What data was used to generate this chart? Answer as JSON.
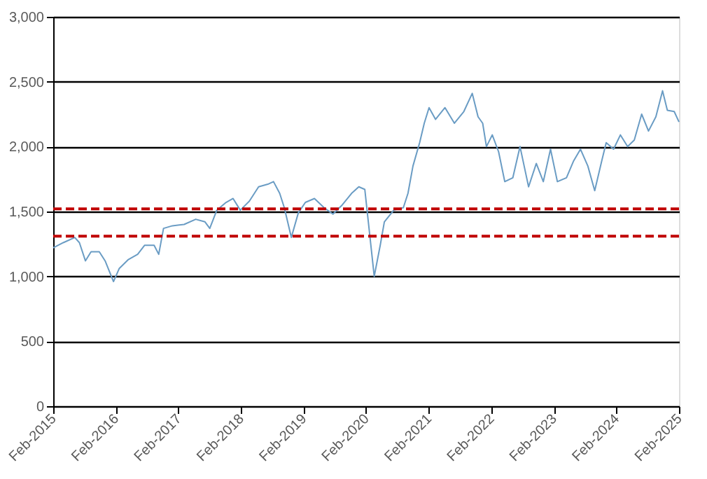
{
  "chart_data": {
    "type": "line",
    "x": [
      "2015-02-01",
      "2015-04-01",
      "2015-06-07",
      "2015-07-04",
      "2015-08-08",
      "2015-09-10",
      "2015-10-28",
      "2015-12-01",
      "2016-01-19",
      "2016-02-21",
      "2016-04-15",
      "2016-06-08",
      "2016-07-19",
      "2016-09-12",
      "2016-10-09",
      "2016-11-06",
      "2016-12-28",
      "2017-03-06",
      "2017-05-13",
      "2017-07-06",
      "2017-08-03",
      "2017-09-13",
      "2017-11-06",
      "2017-12-17",
      "2018-01-28",
      "2018-03-22",
      "2018-05-15",
      "2018-07-08",
      "2018-08-10",
      "2018-09-15",
      "2018-10-12",
      "2018-11-22",
      "2019-01-02",
      "2019-02-12",
      "2019-04-06",
      "2019-06-01",
      "2019-07-23",
      "2019-09-15",
      "2019-11-09",
      "2019-12-21",
      "2020-01-25",
      "2020-03-20",
      "2020-04-24",
      "2020-05-18",
      "2020-07-12",
      "2020-09-06",
      "2020-10-03",
      "2020-11-01",
      "2020-12-10",
      "2021-01-06",
      "2021-02-03",
      "2021-03-13",
      "2021-05-07",
      "2021-07-01",
      "2021-08-25",
      "2021-10-13",
      "2021-11-16",
      "2021-12-13",
      "2022-01-04",
      "2022-02-07",
      "2022-03-16",
      "2022-04-21",
      "2022-06-07",
      "2022-07-19",
      "2022-09-07",
      "2022-10-22",
      "2022-12-02",
      "2023-01-13",
      "2023-02-22",
      "2023-04-16",
      "2023-05-28",
      "2023-07-07",
      "2023-08-19",
      "2023-09-28",
      "2023-11-08",
      "2023-12-04",
      "2024-01-16",
      "2024-02-25",
      "2024-04-07",
      "2024-05-16",
      "2024-06-28",
      "2024-08-07",
      "2024-09-19",
      "2024-10-28",
      "2024-11-25",
      "2025-01-04",
      "2025-02-01"
    ],
    "series": [
      {
        "color": "#6a9cc4",
        "values": [
          1220,
          1260,
          1300,
          1260,
          1120,
          1190,
          1190,
          1120,
          960,
          1060,
          1130,
          1170,
          1240,
          1240,
          1170,
          1370,
          1390,
          1400,
          1440,
          1420,
          1370,
          1510,
          1570,
          1600,
          1510,
          1580,
          1690,
          1710,
          1730,
          1640,
          1530,
          1300,
          1490,
          1570,
          1600,
          1530,
          1480,
          1550,
          1640,
          1690,
          1670,
          1000,
          1240,
          1420,
          1510,
          1530,
          1640,
          1850,
          2030,
          2180,
          2300,
          2210,
          2300,
          2180,
          2270,
          2410,
          2230,
          2180,
          2000,
          2090,
          1960,
          1730,
          1760,
          2000,
          1690,
          1870,
          1730,
          1980,
          1730,
          1760,
          1890,
          1980,
          1850,
          1660,
          1890,
          2030,
          1980,
          2090,
          2000,
          2050,
          2250,
          2120,
          2230,
          2430,
          2280,
          2270,
          2190
        ]
      }
    ],
    "xlim": [
      "2015-02-01",
      "2025-02-01"
    ],
    "xticks": [
      {
        "value": "2015-02-01",
        "label": "Feb-2015"
      },
      {
        "value": "2016-02-01",
        "label": "Feb-2016"
      },
      {
        "value": "2017-02-01",
        "label": "Feb-2017"
      },
      {
        "value": "2018-02-01",
        "label": "Feb-2018"
      },
      {
        "value": "2019-02-01",
        "label": "Feb-2019"
      },
      {
        "value": "2020-02-01",
        "label": "Feb-2020"
      },
      {
        "value": "2021-02-01",
        "label": "Feb-2021"
      },
      {
        "value": "2022-02-01",
        "label": "Feb-2022"
      },
      {
        "value": "2023-02-01",
        "label": "Feb-2023"
      },
      {
        "value": "2024-02-01",
        "label": "Feb-2024"
      },
      {
        "value": "2025-02-01",
        "label": "Feb-2025"
      }
    ],
    "ylim": [
      0,
      3000
    ],
    "yticks": [
      0,
      500,
      {
        "value": 1000,
        "label": "1,000"
      },
      {
        "value": 1500,
        "label": "1,500"
      },
      {
        "value": 2000,
        "label": "2,000"
      },
      {
        "value": 2500,
        "label": "2,500"
      },
      {
        "value": 3000,
        "label": "3,000"
      }
    ],
    "grid": "y",
    "line_style": "solid",
    "marker": "none",
    "ref_lines": [
      {
        "axis": "y",
        "value": 1520,
        "color": "#c00000",
        "line_style": "dashed"
      },
      {
        "axis": "y",
        "value": 1310,
        "color": "#c00000",
        "line_style": "dashed"
      }
    ]
  }
}
